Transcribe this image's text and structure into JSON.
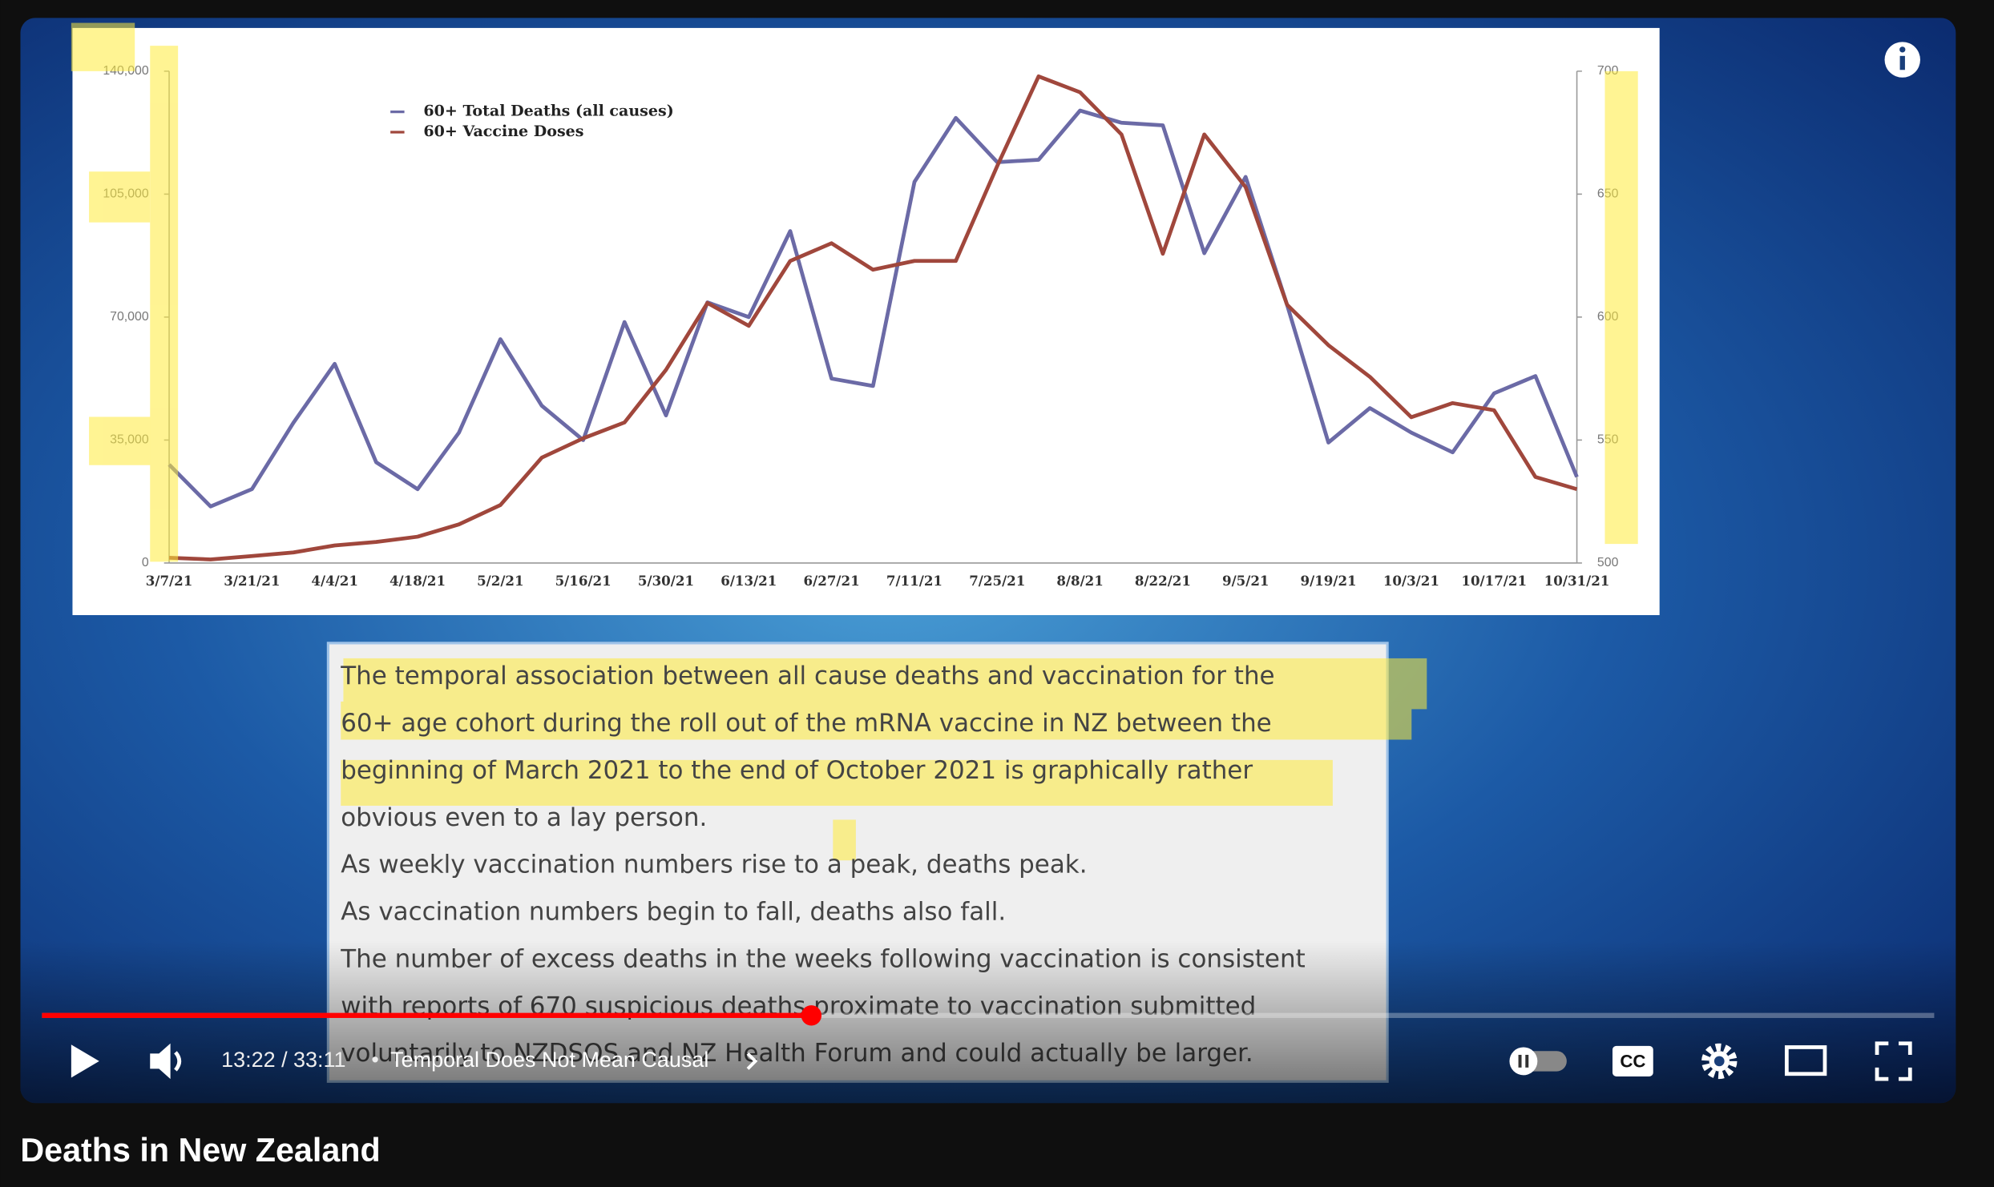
{
  "chart_data": {
    "type": "line",
    "categories": [
      "3/7/21",
      null,
      "3/21/21",
      null,
      "4/4/21",
      null,
      "4/18/21",
      null,
      "5/2/21",
      null,
      "5/16/21",
      null,
      "5/30/21",
      null,
      "6/13/21",
      null,
      "6/27/21",
      null,
      "7/11/21",
      null,
      "7/25/21",
      null,
      "8/8/21",
      null,
      "8/22/21",
      null,
      "9/5/21",
      null,
      "9/19/21",
      null,
      "10/3/21",
      null,
      "10/17/21",
      null,
      "10/31/21"
    ],
    "series": [
      {
        "name": "60+ Total Deaths (all causes)",
        "color": "#6b6aa6",
        "axis": "y2",
        "values": [
          540,
          523,
          530,
          557,
          581,
          541,
          530,
          553,
          591,
          564,
          550,
          598,
          560,
          606,
          600,
          635,
          575,
          572,
          655,
          681,
          663,
          664,
          684,
          679,
          678,
          626,
          657,
          605,
          549,
          563,
          553,
          545,
          569,
          576,
          535
        ]
      },
      {
        "name": "60+ Vaccine Doses",
        "color": "#a0473c",
        "values": [
          1500,
          1000,
          2000,
          3000,
          5000,
          6000,
          7500,
          11000,
          16500,
          30000,
          35500,
          40000,
          55000,
          74000,
          67500,
          86000,
          91000,
          83500,
          86000,
          86000,
          113000,
          138500,
          134000,
          122000,
          88000,
          122000,
          107000,
          73500,
          62000,
          53000,
          41500,
          45500,
          43500,
          24500,
          21000
        ]
      }
    ],
    "ylim": [
      0,
      140000
    ],
    "yticks": [
      0,
      {
        "value": 35000,
        "label": "35,000"
      },
      {
        "value": 70000,
        "label": "70,000"
      },
      {
        "value": 105000,
        "label": "105,000"
      },
      {
        "value": 140000,
        "label": "140,000"
      }
    ],
    "y2lim": [
      500,
      700
    ],
    "y2ticks": [
      500,
      550,
      600,
      650,
      700
    ],
    "legend": "upper left"
  },
  "slide_text": [
    "The temporal association between all cause deaths and vaccination for the",
    "60+ age cohort during the roll out of the mRNA vaccine in NZ between the",
    "beginning of March 2021 to the end of October 2021 is graphically rather",
    "obvious even to a lay person.",
    "As weekly vaccination numbers rise to a peak, deaths peak.",
    "As vaccination numbers begin to fall, deaths also fall.",
    "The number of excess deaths in the weeks following vaccination is consistent",
    "with reports of 670 suspicious deaths proximate to vaccination submitted",
    "voluntarily to NZDSOS and NZ Health Forum and could actually be larger."
  ],
  "player": {
    "time": "13:22 / 33:11",
    "separator": "•",
    "chapter": "Temporal Does Not Mean Causal",
    "cc_label": "CC"
  },
  "video_title": "Deaths in New Zealand"
}
